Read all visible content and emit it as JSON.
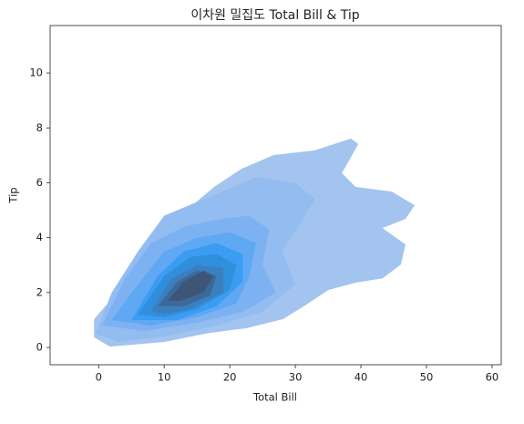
{
  "chart_data": {
    "type": "kde",
    "title": "이차원 밀집도 Total Bill & Tip",
    "x_label": "Total Bill",
    "y_label": "Tip",
    "xlim": [
      -7.4,
      61.4
    ],
    "ylim": [
      -0.63,
      11.73
    ],
    "xticks": [
      0,
      10,
      20,
      30,
      40,
      50,
      60
    ],
    "yticks": [
      0,
      2,
      4,
      6,
      8,
      10
    ],
    "contours": [
      {
        "color": "#a3c4ee",
        "x": [
          -0.7,
          -0.7,
          1.7,
          4.4,
          6.9,
          9.3,
          13.5,
          17.6,
          21.8,
          26.7,
          32.9,
          38.5,
          39.6,
          37.1,
          39.2,
          44.7,
          48.2,
          46.8,
          43.3,
          46.8,
          46.1,
          43.3,
          39.2,
          35.0,
          31.5,
          28.1,
          22.5,
          16.9,
          10.0,
          1.7
        ],
        "y": [
          0.37,
          1.03,
          1.69,
          2.52,
          3.69,
          4.52,
          5.02,
          5.85,
          6.51,
          7.01,
          7.18,
          7.61,
          7.41,
          6.35,
          5.85,
          5.68,
          5.18,
          4.68,
          4.35,
          3.75,
          3.02,
          2.52,
          2.36,
          2.09,
          1.53,
          1.03,
          0.7,
          0.53,
          0.2,
          0.03
        ]
      },
      {
        "color": "#93bcf0",
        "x": [
          -0.5,
          2,
          6,
          10,
          17,
          24,
          30,
          33,
          28,
          30,
          25,
          18,
          10,
          3
        ],
        "y": [
          0.5,
          2,
          3.5,
          4.8,
          5.5,
          6.2,
          6.0,
          5.4,
          3.5,
          2.3,
          1.3,
          0.8,
          0.4,
          0.2
        ]
      },
      {
        "color": "#7db2f2",
        "x": [
          0.5,
          4,
          8,
          13,
          19,
          23,
          26,
          25,
          27,
          22,
          15,
          7
        ],
        "y": [
          0.8,
          2.5,
          3.8,
          4.4,
          4.7,
          4.8,
          4.3,
          3.0,
          2.0,
          1.3,
          0.9,
          0.6
        ]
      },
      {
        "color": "#5ea8f4",
        "x": [
          2,
          6,
          10,
          15,
          20,
          24,
          23,
          21,
          15,
          8
        ],
        "y": [
          1.0,
          2.3,
          3.5,
          4.0,
          4.2,
          3.8,
          2.6,
          1.6,
          1.1,
          0.8
        ]
      },
      {
        "color": "#3a9cf3",
        "x": [
          5,
          9,
          13,
          18,
          22,
          22,
          18,
          12
        ],
        "y": [
          1.0,
          2.6,
          3.5,
          3.8,
          3.4,
          2.4,
          1.5,
          1.0
        ]
      },
      {
        "color": "#2f8fdc",
        "x": [
          6,
          10,
          14,
          18,
          21,
          20,
          15,
          10
        ],
        "y": [
          1.2,
          2.6,
          3.3,
          3.4,
          3.0,
          2.1,
          1.4,
          1.1
        ]
      },
      {
        "color": "#3c7fbe",
        "x": [
          8,
          11,
          15,
          19,
          19,
          14,
          10
        ],
        "y": [
          1.3,
          2.5,
          3.0,
          2.9,
          2.0,
          1.4,
          1.2
        ]
      },
      {
        "color": "#3b6a9a",
        "x": [
          9,
          12,
          15,
          18,
          17,
          13
        ],
        "y": [
          1.5,
          2.4,
          2.8,
          2.6,
          1.9,
          1.5
        ]
      },
      {
        "color": "#3e5577",
        "x": [
          10.5,
          13,
          16,
          17.5,
          16,
          12.5
        ],
        "y": [
          1.7,
          2.4,
          2.8,
          2.6,
          2.0,
          1.7
        ]
      }
    ]
  }
}
